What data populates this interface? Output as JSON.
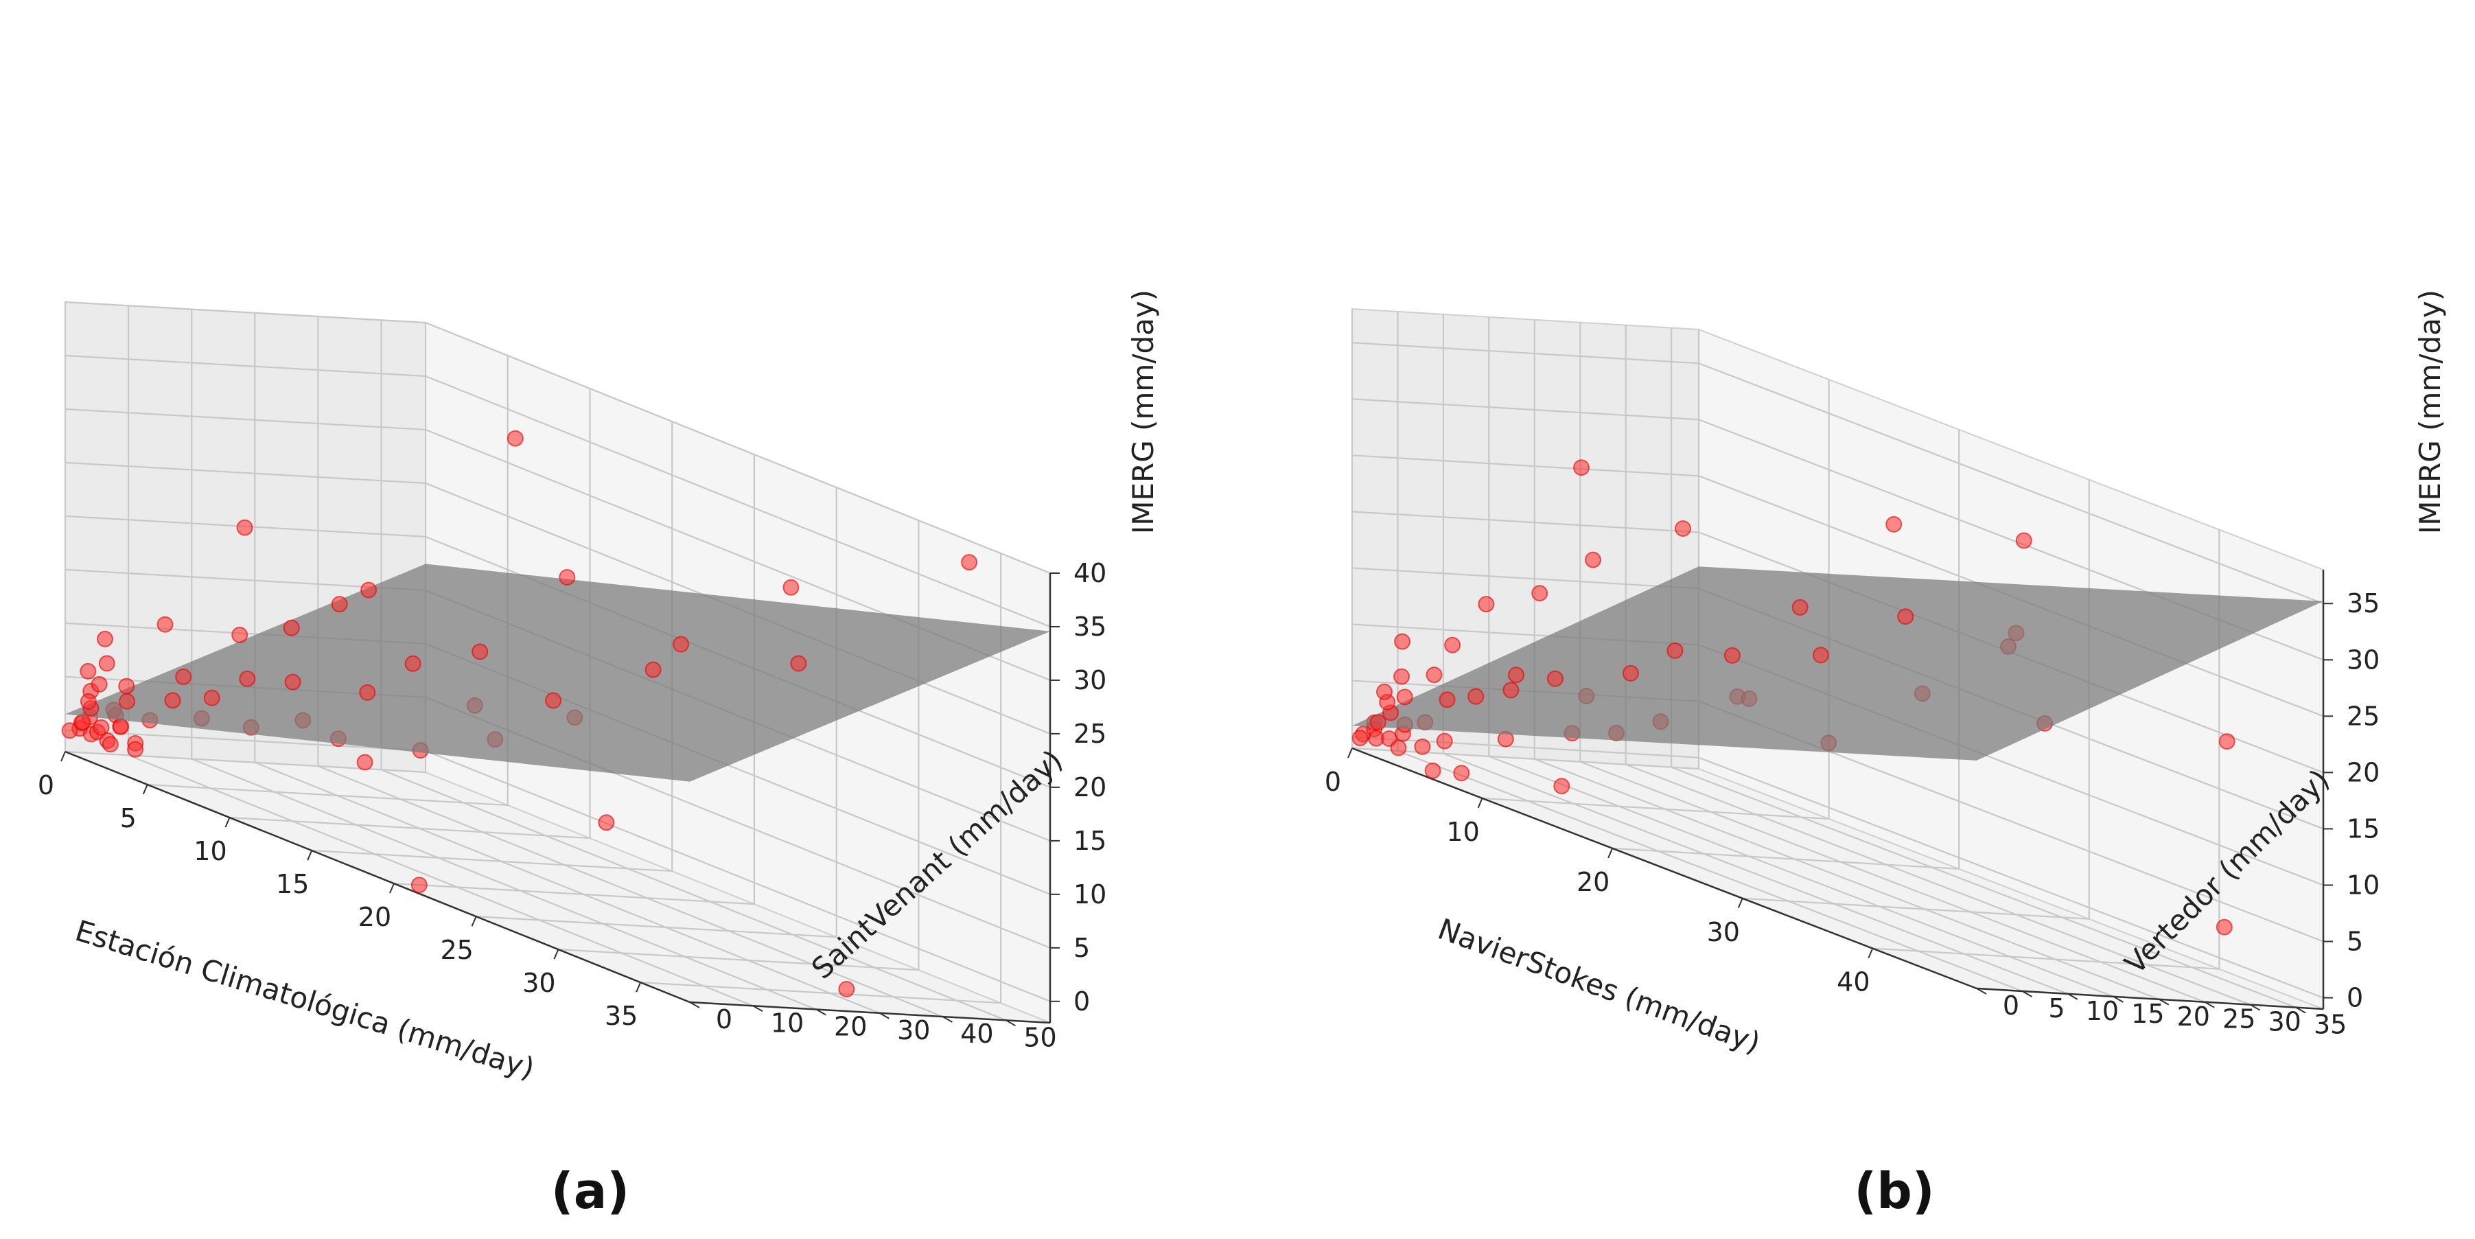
{
  "chart_data": [
    {
      "type": "scatter3d",
      "panel_label": "(a)",
      "xlabel": "Estación Climatológica (mm/day)",
      "ylabel": "SaintVenant (mm/day)",
      "zlabel": "IMERG (mm/day)",
      "xlim": [
        0,
        38
      ],
      "ylim": [
        0,
        57
      ],
      "zlim": [
        -2,
        40
      ],
      "xticks": [
        0,
        5,
        10,
        15,
        20,
        25,
        30,
        35
      ],
      "yticks": [
        0,
        10,
        20,
        30,
        40,
        50
      ],
      "zticks": [
        0,
        5,
        10,
        15,
        20,
        25,
        30,
        35,
        40
      ],
      "plane": {
        "intercept": 1.5,
        "coef_x": 0.45,
        "coef_y": 0.28
      },
      "points": [
        {
          "x": 0.5,
          "y": 1,
          "z": 0.5
        },
        {
          "x": 0.8,
          "y": 0.5,
          "z": 1.2
        },
        {
          "x": 1,
          "y": 1.5,
          "z": 0.3
        },
        {
          "x": 1.2,
          "y": 0.8,
          "z": 2
        },
        {
          "x": 0.3,
          "y": 2,
          "z": 1
        },
        {
          "x": 1.5,
          "y": 1.2,
          "z": 0.8
        },
        {
          "x": 2,
          "y": 0.5,
          "z": 1.5
        },
        {
          "x": 0.6,
          "y": 2.5,
          "z": 2.5
        },
        {
          "x": 1.8,
          "y": 2,
          "z": 0.2
        },
        {
          "x": 2.5,
          "y": 1.5,
          "z": 3
        },
        {
          "x": 0.4,
          "y": 3,
          "z": 4
        },
        {
          "x": 1,
          "y": 2.8,
          "z": 5
        },
        {
          "x": 1.3,
          "y": 0.3,
          "z": 3.5
        },
        {
          "x": 2.2,
          "y": 3,
          "z": 1.8
        },
        {
          "x": 3,
          "y": 1,
          "z": 2.2
        },
        {
          "x": 0.7,
          "y": 1.8,
          "z": 6
        },
        {
          "x": 1.6,
          "y": 3.5,
          "z": 3
        },
        {
          "x": 2.8,
          "y": 2.5,
          "z": 4.5
        },
        {
          "x": 0.2,
          "y": 0.2,
          "z": 0.1
        },
        {
          "x": 3.5,
          "y": 2,
          "z": 1
        },
        {
          "x": 1,
          "y": 4,
          "z": 7
        },
        {
          "x": 2,
          "y": 4.5,
          "z": 5.5
        },
        {
          "x": 4,
          "y": 3,
          "z": 3.5
        },
        {
          "x": 0.5,
          "y": 5,
          "z": 9
        },
        {
          "x": 5,
          "y": 4,
          "z": 6
        },
        {
          "x": 6,
          "y": 6,
          "z": 5
        },
        {
          "x": 4.5,
          "y": 7,
          "z": 8
        },
        {
          "x": 7,
          "y": 5,
          "z": 7.5
        },
        {
          "x": 3,
          "y": 8,
          "z": 12
        },
        {
          "x": 8,
          "y": 8,
          "z": 10
        },
        {
          "x": 9,
          "y": 6,
          "z": 6
        },
        {
          "x": 10,
          "y": 10,
          "z": 11
        },
        {
          "x": 6,
          "y": 12,
          "z": 13
        },
        {
          "x": 11,
          "y": 9,
          "z": 8
        },
        {
          "x": 12,
          "y": 12,
          "z": 7
        },
        {
          "x": 13,
          "y": 14,
          "z": 12
        },
        {
          "x": 8,
          "y": 15,
          "z": 15
        },
        {
          "x": 14,
          "y": 11,
          "z": 6
        },
        {
          "x": 15,
          "y": 16,
          "z": 16
        },
        {
          "x": 17,
          "y": 12,
          "z": 9
        },
        {
          "x": 4,
          "y": 18,
          "z": 22
        },
        {
          "x": 18,
          "y": 18,
          "z": 14
        },
        {
          "x": 20,
          "y": 16,
          "z": 12
        },
        {
          "x": 22,
          "y": 20,
          "z": 17
        },
        {
          "x": 10,
          "y": 22,
          "z": 20
        },
        {
          "x": 16,
          "y": 24,
          "z": 18
        },
        {
          "x": 19,
          "y": 30,
          "z": 27
        },
        {
          "x": 25,
          "y": 28,
          "z": 22
        },
        {
          "x": 24,
          "y": 35,
          "z": 24
        },
        {
          "x": 28,
          "y": 42,
          "z": 32
        },
        {
          "x": 30,
          "y": 38,
          "z": 26
        },
        {
          "x": 12,
          "y": 40,
          "z": 36
        },
        {
          "x": 35,
          "y": 52,
          "z": 39
        },
        {
          "x": 20,
          "y": 4,
          "z": -2
        },
        {
          "x": 36,
          "y": 30,
          "z": -1
        },
        {
          "x": 26,
          "y": 18,
          "z": 8
        },
        {
          "x": 9,
          "y": 20,
          "z": 18
        },
        {
          "x": 21,
          "y": 26,
          "z": 15
        },
        {
          "x": 3.8,
          "y": 1.2,
          "z": 0.6
        },
        {
          "x": 2.6,
          "y": 0.4,
          "z": 0.3
        }
      ]
    },
    {
      "type": "scatter3d",
      "panel_label": "(b)",
      "xlabel": "NavierStokes (mm/day)",
      "ylabel": "Vertedor (mm/day)",
      "zlabel": "IMERG (mm/day)",
      "xlim": [
        0,
        48
      ],
      "ylim": [
        0,
        38
      ],
      "zlim": [
        -1,
        38
      ],
      "xticks": [
        0,
        10,
        20,
        30,
        40
      ],
      "yticks": [
        0,
        5,
        10,
        15,
        20,
        25,
        30,
        35
      ],
      "zticks": [
        0,
        5,
        10,
        15,
        20,
        25,
        30,
        35
      ],
      "plane": {
        "intercept": 1.0,
        "coef_x": 0.38,
        "coef_y": 0.42
      },
      "points": [
        {
          "x": 0.5,
          "y": 0.5,
          "z": 0.5
        },
        {
          "x": 1,
          "y": 1,
          "z": 1.2
        },
        {
          "x": 0.8,
          "y": 1.5,
          "z": 0.3
        },
        {
          "x": 1.5,
          "y": 0.7,
          "z": 2
        },
        {
          "x": 0.3,
          "y": 2,
          "z": 1.5
        },
        {
          "x": 2,
          "y": 1.2,
          "z": 0.8
        },
        {
          "x": 1.2,
          "y": 2.5,
          "z": 2.8
        },
        {
          "x": 2.5,
          "y": 2,
          "z": 1.5
        },
        {
          "x": 0.6,
          "y": 3,
          "z": 3.5
        },
        {
          "x": 3,
          "y": 1.5,
          "z": 2.5
        },
        {
          "x": 1.8,
          "y": 3.2,
          "z": 4.5
        },
        {
          "x": 3.5,
          "y": 3,
          "z": 3
        },
        {
          "x": 0.4,
          "y": 0.3,
          "z": 0.1
        },
        {
          "x": 2.2,
          "y": 0.4,
          "z": 5
        },
        {
          "x": 4,
          "y": 2,
          "z": 1
        },
        {
          "x": 1,
          "y": 4,
          "z": 6
        },
        {
          "x": 4.5,
          "y": 4,
          "z": 5.5
        },
        {
          "x": 5,
          "y": 3,
          "z": 2
        },
        {
          "x": 2.8,
          "y": 5,
          "z": 7
        },
        {
          "x": 6,
          "y": 5,
          "z": 6.5
        },
        {
          "x": 0.7,
          "y": 4.5,
          "z": 9
        },
        {
          "x": 5.5,
          "y": 1,
          "z": -0.5
        },
        {
          "x": 7,
          "y": 2,
          "z": 0
        },
        {
          "x": 3.5,
          "y": 6,
          "z": 10
        },
        {
          "x": 8,
          "y": 6,
          "z": 8
        },
        {
          "x": 7,
          "y": 8,
          "z": 9
        },
        {
          "x": 9,
          "y": 4,
          "z": 4
        },
        {
          "x": 10,
          "y": 8,
          "z": 10
        },
        {
          "x": 4,
          "y": 9,
          "z": 14
        },
        {
          "x": 11,
          "y": 10,
          "z": 9
        },
        {
          "x": 12,
          "y": 7,
          "z": 6
        },
        {
          "x": 6,
          "y": 12,
          "z": 16
        },
        {
          "x": 13,
          "y": 12,
          "z": 12
        },
        {
          "x": 14,
          "y": 9,
          "z": 7
        },
        {
          "x": 15,
          "y": 14,
          "z": 15
        },
        {
          "x": 8,
          "y": 15,
          "z": 20
        },
        {
          "x": 16,
          "y": 11,
          "z": 9
        },
        {
          "x": 18,
          "y": 16,
          "z": 16
        },
        {
          "x": 17,
          "y": 18,
          "z": 12
        },
        {
          "x": 20,
          "y": 15,
          "z": 13
        },
        {
          "x": 5,
          "y": 18,
          "z": 27
        },
        {
          "x": 22,
          "y": 20,
          "z": 18
        },
        {
          "x": 19,
          "y": 22,
          "z": 21
        },
        {
          "x": 24,
          "y": 18,
          "z": 11
        },
        {
          "x": 10,
          "y": 22,
          "z": 24
        },
        {
          "x": 25,
          "y": 25,
          "z": 23
        },
        {
          "x": 27,
          "y": 24,
          "z": 17
        },
        {
          "x": 22,
          "y": 28,
          "z": 30
        },
        {
          "x": 30,
          "y": 30,
          "z": 24
        },
        {
          "x": 32,
          "y": 28,
          "z": 33
        },
        {
          "x": 28,
          "y": 32,
          "z": 22
        },
        {
          "x": 42,
          "y": 36,
          "z": 20
        },
        {
          "x": 46,
          "y": 30,
          "z": 5
        },
        {
          "x": 35,
          "y": 26,
          "z": 18
        },
        {
          "x": 14,
          "y": 3,
          "z": 2
        },
        {
          "x": 3,
          "y": 0.8,
          "z": 0.4
        }
      ]
    }
  ]
}
